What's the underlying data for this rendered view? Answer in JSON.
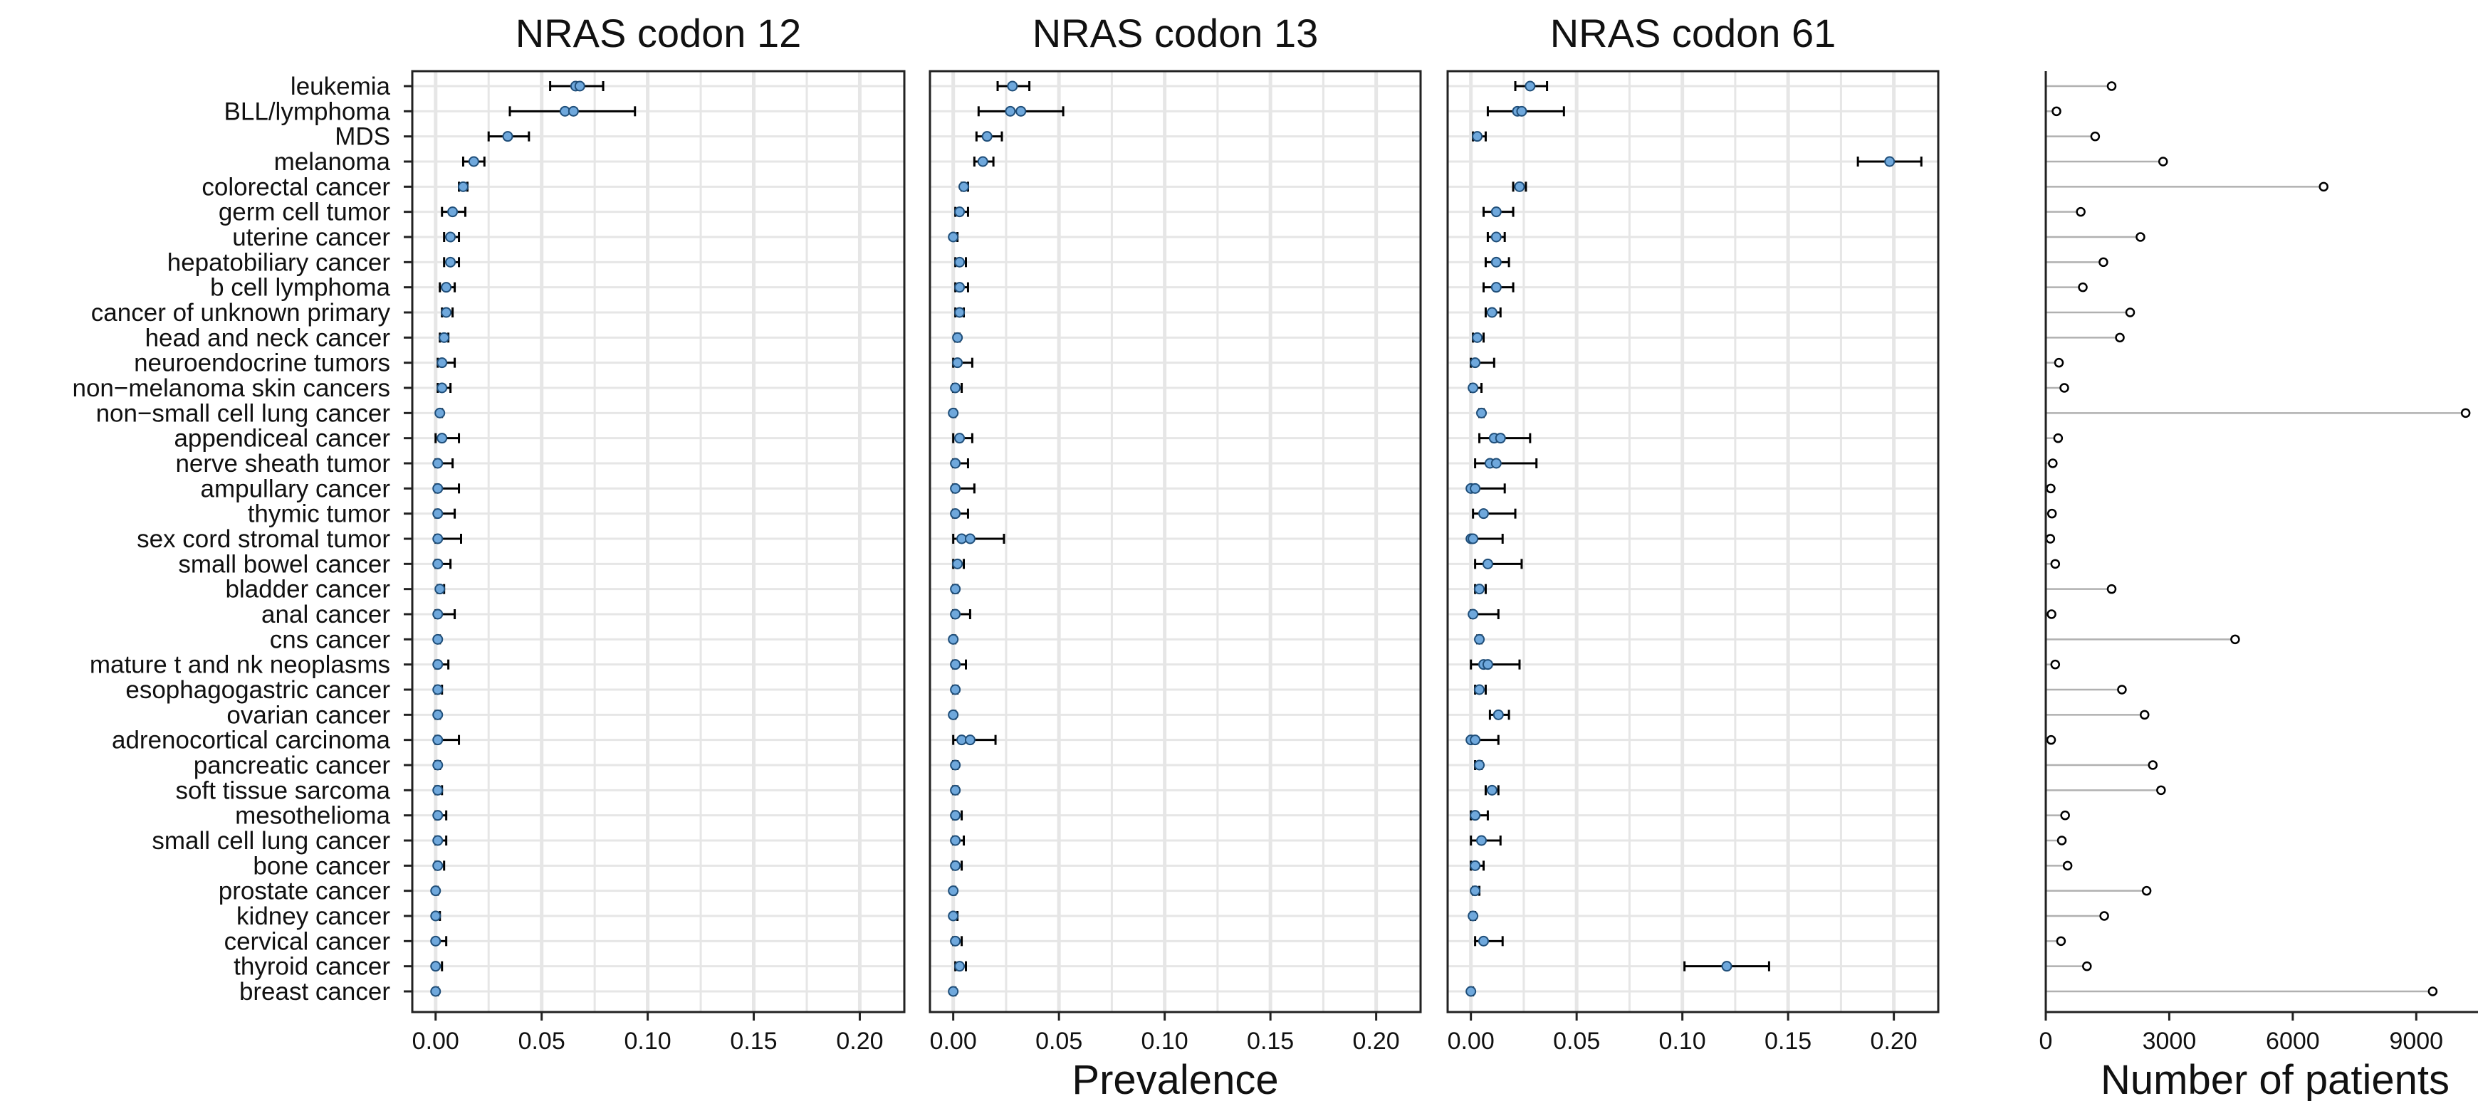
{
  "colors": {
    "point_fill": "#6fa8dc",
    "point_stroke": "#1f4e79",
    "errorbar": "#000000",
    "grid": "#e6e6e6",
    "lollipop_line": "#b0b0b0",
    "lollipop_point": "#000000"
  },
  "chart_data": {
    "type": "scatter",
    "description_type": "dot plot with error bars (prevalence) + lollipop (patient counts)",
    "grid": true,
    "categories": [
      "leukemia",
      "BLL/lymphoma",
      "MDS",
      "melanoma",
      "colorectal cancer",
      "germ cell tumor",
      "uterine cancer",
      "hepatobiliary cancer",
      "b cell lymphoma",
      "cancer of unknown primary",
      "head and neck cancer",
      "neuroendocrine tumors",
      "non−melanoma skin cancers",
      "non−small cell lung cancer",
      "appendiceal cancer",
      "nerve sheath tumor",
      "ampullary cancer",
      "thymic tumor",
      "sex cord stromal tumor",
      "small bowel cancer",
      "bladder cancer",
      "anal cancer",
      "cns cancer",
      "mature t and nk neoplasms",
      "esophagogastric cancer",
      "ovarian cancer",
      "adrenocortical carcinoma",
      "pancreatic cancer",
      "soft tissue sarcoma",
      "mesothelioma",
      "small cell lung cancer",
      "bone cancer",
      "prostate cancer",
      "kidney cancer",
      "cervical cancer",
      "thyroid cancer",
      "breast cancer"
    ],
    "prevalence_xlabel": "Prevalence",
    "prevalence_xlim": [
      -0.011,
      0.221
    ],
    "prevalence_ticks": [
      0.0,
      0.05,
      0.1,
      0.15,
      0.2
    ],
    "prevalence_tick_labels": [
      "0.00",
      "0.05",
      "0.10",
      "0.15",
      "0.20"
    ],
    "panels": [
      {
        "title": "NRAS codon 12",
        "values": [
          {
            "v": 0.066,
            "v2": 0.068,
            "lo": 0.054,
            "hi": 0.079
          },
          {
            "v": 0.061,
            "v2": 0.065,
            "lo": 0.035,
            "hi": 0.094
          },
          {
            "v": 0.034,
            "lo": 0.025,
            "hi": 0.044
          },
          {
            "v": 0.018,
            "lo": 0.013,
            "hi": 0.023
          },
          {
            "v": 0.013,
            "lo": 0.011,
            "hi": 0.015
          },
          {
            "v": 0.008,
            "lo": 0.003,
            "hi": 0.014
          },
          {
            "v": 0.007,
            "lo": 0.004,
            "hi": 0.011
          },
          {
            "v": 0.007,
            "lo": 0.004,
            "hi": 0.011
          },
          {
            "v": 0.005,
            "lo": 0.002,
            "hi": 0.009
          },
          {
            "v": 0.005,
            "lo": 0.003,
            "hi": 0.008
          },
          {
            "v": 0.004,
            "lo": 0.002,
            "hi": 0.006
          },
          {
            "v": 0.003,
            "lo": 0.001,
            "hi": 0.009
          },
          {
            "v": 0.003,
            "lo": 0.001,
            "hi": 0.007
          },
          {
            "v": 0.002,
            "lo": 0.002,
            "hi": 0.003
          },
          {
            "v": 0.003,
            "lo": 0.0,
            "hi": 0.011
          },
          {
            "v": 0.001,
            "lo": 0.0,
            "hi": 0.008
          },
          {
            "v": 0.001,
            "lo": 0.0,
            "hi": 0.011
          },
          {
            "v": 0.001,
            "lo": 0.0,
            "hi": 0.009
          },
          {
            "v": 0.001,
            "lo": 0.0,
            "hi": 0.012
          },
          {
            "v": 0.001,
            "lo": 0.0,
            "hi": 0.007
          },
          {
            "v": 0.002,
            "lo": 0.001,
            "hi": 0.004
          },
          {
            "v": 0.001,
            "lo": 0.0,
            "hi": 0.009
          },
          {
            "v": 0.001,
            "lo": 0.001,
            "hi": 0.002
          },
          {
            "v": 0.001,
            "lo": 0.0,
            "hi": 0.006
          },
          {
            "v": 0.001,
            "lo": 0.0,
            "hi": 0.003
          },
          {
            "v": 0.001,
            "lo": 0.0,
            "hi": 0.002
          },
          {
            "v": 0.001,
            "lo": 0.0,
            "hi": 0.011
          },
          {
            "v": 0.001,
            "lo": 0.0,
            "hi": 0.002
          },
          {
            "v": 0.001,
            "lo": 0.0,
            "hi": 0.003
          },
          {
            "v": 0.001,
            "lo": 0.0,
            "hi": 0.005
          },
          {
            "v": 0.001,
            "lo": 0.0,
            "hi": 0.005
          },
          {
            "v": 0.001,
            "lo": 0.0,
            "hi": 0.004
          },
          {
            "v": 0.0,
            "lo": 0.0,
            "hi": 0.001
          },
          {
            "v": 0.0,
            "lo": 0.0,
            "hi": 0.002
          },
          {
            "v": 0.0,
            "lo": 0.0,
            "hi": 0.005
          },
          {
            "v": 0.0,
            "lo": 0.0,
            "hi": 0.003
          },
          {
            "v": 0.0,
            "lo": 0.0,
            "hi": 0.001
          }
        ]
      },
      {
        "title": "NRAS codon 13",
        "values": [
          {
            "v": 0.028,
            "lo": 0.021,
            "hi": 0.036
          },
          {
            "v": 0.027,
            "v2": 0.032,
            "lo": 0.012,
            "hi": 0.052
          },
          {
            "v": 0.016,
            "lo": 0.011,
            "hi": 0.023
          },
          {
            "v": 0.014,
            "lo": 0.01,
            "hi": 0.019
          },
          {
            "v": 0.005,
            "lo": 0.004,
            "hi": 0.007
          },
          {
            "v": 0.003,
            "lo": 0.001,
            "hi": 0.007
          },
          {
            "v": 0.0,
            "lo": 0.0,
            "hi": 0.002
          },
          {
            "v": 0.003,
            "lo": 0.001,
            "hi": 0.006
          },
          {
            "v": 0.003,
            "lo": 0.001,
            "hi": 0.007
          },
          {
            "v": 0.003,
            "lo": 0.001,
            "hi": 0.005
          },
          {
            "v": 0.002,
            "lo": 0.001,
            "hi": 0.003
          },
          {
            "v": 0.002,
            "lo": 0.0,
            "hi": 0.009
          },
          {
            "v": 0.001,
            "lo": 0.0,
            "hi": 0.004
          },
          {
            "v": 0.0,
            "lo": 0.0,
            "hi": 0.001
          },
          {
            "v": 0.003,
            "lo": 0.0,
            "hi": 0.009
          },
          {
            "v": 0.001,
            "lo": 0.0,
            "hi": 0.007
          },
          {
            "v": 0.001,
            "lo": 0.0,
            "hi": 0.01
          },
          {
            "v": 0.001,
            "lo": 0.0,
            "hi": 0.007
          },
          {
            "v": 0.004,
            "v2": 0.008,
            "lo": 0.0,
            "hi": 0.024
          },
          {
            "v": 0.002,
            "lo": 0.0,
            "hi": 0.005
          },
          {
            "v": 0.001,
            "lo": 0.0,
            "hi": 0.002
          },
          {
            "v": 0.001,
            "lo": 0.0,
            "hi": 0.008
          },
          {
            "v": 0.0,
            "lo": 0.0,
            "hi": 0.001
          },
          {
            "v": 0.001,
            "lo": 0.0,
            "hi": 0.006
          },
          {
            "v": 0.001,
            "lo": 0.0,
            "hi": 0.002
          },
          {
            "v": 0.0,
            "lo": 0.0,
            "hi": 0.001
          },
          {
            "v": 0.004,
            "v2": 0.008,
            "lo": 0.0,
            "hi": 0.02
          },
          {
            "v": 0.001,
            "lo": 0.0,
            "hi": 0.002
          },
          {
            "v": 0.001,
            "lo": 0.0,
            "hi": 0.002
          },
          {
            "v": 0.001,
            "lo": 0.0,
            "hi": 0.004
          },
          {
            "v": 0.001,
            "lo": 0.0,
            "hi": 0.005
          },
          {
            "v": 0.001,
            "lo": 0.0,
            "hi": 0.004
          },
          {
            "v": 0.0,
            "lo": 0.0,
            "hi": 0.001
          },
          {
            "v": 0.0,
            "lo": 0.0,
            "hi": 0.002
          },
          {
            "v": 0.001,
            "lo": 0.0,
            "hi": 0.004
          },
          {
            "v": 0.003,
            "lo": 0.001,
            "hi": 0.006
          },
          {
            "v": 0.0,
            "lo": 0.0,
            "hi": 0.001
          }
        ]
      },
      {
        "title": "NRAS codon 61",
        "values": [
          {
            "v": 0.028,
            "lo": 0.021,
            "hi": 0.036
          },
          {
            "v": 0.022,
            "v2": 0.024,
            "lo": 0.008,
            "hi": 0.044
          },
          {
            "v": 0.003,
            "lo": 0.001,
            "hi": 0.007
          },
          {
            "v": 0.198,
            "lo": 0.183,
            "hi": 0.213
          },
          {
            "v": 0.023,
            "lo": 0.02,
            "hi": 0.026
          },
          {
            "v": 0.012,
            "lo": 0.006,
            "hi": 0.02
          },
          {
            "v": 0.012,
            "lo": 0.008,
            "hi": 0.016
          },
          {
            "v": 0.012,
            "lo": 0.007,
            "hi": 0.018
          },
          {
            "v": 0.012,
            "lo": 0.006,
            "hi": 0.02
          },
          {
            "v": 0.01,
            "lo": 0.007,
            "hi": 0.014
          },
          {
            "v": 0.003,
            "lo": 0.001,
            "hi": 0.006
          },
          {
            "v": 0.002,
            "lo": 0.0,
            "hi": 0.011
          },
          {
            "v": 0.001,
            "lo": 0.0,
            "hi": 0.005
          },
          {
            "v": 0.005,
            "lo": 0.004,
            "hi": 0.006
          },
          {
            "v": 0.011,
            "v2": 0.014,
            "lo": 0.004,
            "hi": 0.028
          },
          {
            "v": 0.009,
            "v2": 0.012,
            "lo": 0.002,
            "hi": 0.031
          },
          {
            "v": 0.0,
            "v2": 0.002,
            "lo": 0.0,
            "hi": 0.016
          },
          {
            "v": 0.006,
            "lo": 0.001,
            "hi": 0.021
          },
          {
            "v": 0.0,
            "v2": 0.001,
            "lo": 0.0,
            "hi": 0.015
          },
          {
            "v": 0.008,
            "lo": 0.002,
            "hi": 0.024
          },
          {
            "v": 0.004,
            "lo": 0.002,
            "hi": 0.007
          },
          {
            "v": 0.001,
            "lo": 0.0,
            "hi": 0.013
          },
          {
            "v": 0.004,
            "lo": 0.003,
            "hi": 0.005
          },
          {
            "v": 0.006,
            "v2": 0.008,
            "lo": 0.0,
            "hi": 0.023
          },
          {
            "v": 0.004,
            "lo": 0.002,
            "hi": 0.007
          },
          {
            "v": 0.013,
            "lo": 0.009,
            "hi": 0.018
          },
          {
            "v": 0.0,
            "v2": 0.002,
            "lo": 0.0,
            "hi": 0.013
          },
          {
            "v": 0.004,
            "lo": 0.002,
            "hi": 0.005
          },
          {
            "v": 0.01,
            "lo": 0.007,
            "hi": 0.013
          },
          {
            "v": 0.002,
            "lo": 0.0,
            "hi": 0.008
          },
          {
            "v": 0.005,
            "lo": 0.0,
            "hi": 0.014
          },
          {
            "v": 0.002,
            "lo": 0.0,
            "hi": 0.006
          },
          {
            "v": 0.002,
            "lo": 0.001,
            "hi": 0.004
          },
          {
            "v": 0.001,
            "lo": 0.0,
            "hi": 0.002
          },
          {
            "v": 0.006,
            "lo": 0.002,
            "hi": 0.015
          },
          {
            "v": 0.121,
            "lo": 0.101,
            "hi": 0.141
          },
          {
            "v": 0.0,
            "lo": 0.0,
            "hi": 0.001
          }
        ]
      }
    ],
    "patients": {
      "xlabel": "Number of patients",
      "xlim": [
        0,
        10500
      ],
      "ticks": [
        0,
        3000,
        6000,
        9000
      ],
      "tick_labels": [
        "0",
        "3000",
        "6000",
        "9000"
      ],
      "values": [
        1600,
        260,
        1200,
        2850,
        6750,
        850,
        2300,
        1400,
        900,
        2050,
        1800,
        320,
        450,
        10200,
        300,
        170,
        120,
        150,
        110,
        230,
        1600,
        140,
        4600,
        230,
        1850,
        2400,
        130,
        2600,
        2800,
        470,
        390,
        530,
        2450,
        1420,
        370,
        1000,
        9400
      ]
    }
  }
}
